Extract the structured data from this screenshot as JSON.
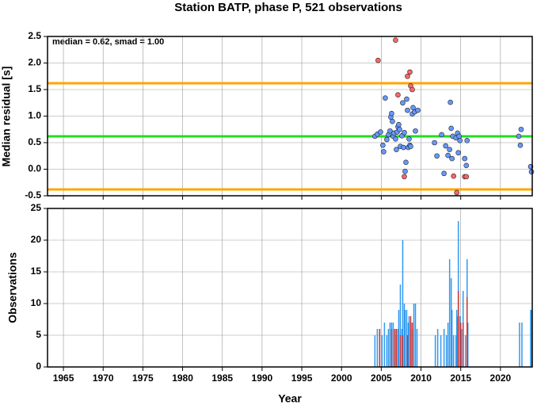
{
  "chart_data": [
    {
      "type": "scatter",
      "title": "Station BATP, phase P, 521 observations",
      "ylabel": "Median residual [s]",
      "annotation": "median = 0.62, smad = 1.00",
      "xlim": [
        1963,
        2024
      ],
      "xticks": [
        1965,
        1970,
        1975,
        1980,
        1985,
        1990,
        1995,
        2000,
        2005,
        2010,
        2015,
        2020
      ],
      "ylim": [
        -0.5,
        2.5
      ],
      "yticks": [
        -0.5,
        {
          "value": 0,
          "label": "0.0"
        },
        0.5,
        {
          "value": 1,
          "label": "1.0"
        },
        1.5,
        {
          "value": 2,
          "label": "2.0"
        },
        2.5
      ],
      "grid": true,
      "hlines": [
        {
          "value": 1.62,
          "color": "#ffa500"
        },
        {
          "value": 0.62,
          "color": "#22dd22"
        },
        {
          "value": -0.38,
          "color": "#ffa500"
        }
      ],
      "series": [
        {
          "color": "#6699ff",
          "x": [
            2004.2,
            2004.5,
            2004.9,
            2005.2,
            2005.3,
            2005.5,
            2005.7,
            2005.9,
            2006.1,
            2006.2,
            2006.3,
            2006.4,
            2006.5,
            2006.6,
            2006.8,
            2006.9,
            2007.0,
            2007.1,
            2007.2,
            2007.3,
            2007.4,
            2007.6,
            2007.7,
            2007.8,
            2007.9,
            2008.0,
            2008.1,
            2008.2,
            2008.3,
            2008.4,
            2008.5,
            2008.6,
            2008.7,
            2008.9,
            2009.0,
            2009.2,
            2009.3,
            2009.6,
            2011.7,
            2012.0,
            2012.6,
            2012.9,
            2013.1,
            2013.4,
            2013.6,
            2013.7,
            2013.8,
            2013.9,
            2014.0,
            2014.4,
            2014.6,
            2014.7,
            2014.8,
            2014.9,
            2015.5,
            2015.7,
            2015.8,
            2022.3,
            2022.6,
            2022.5,
            2023.8,
            2023.9
          ],
          "values": [
            0.62,
            0.66,
            0.7,
            0.45,
            0.33,
            1.34,
            0.56,
            0.65,
            0.72,
            0.98,
            1.05,
            0.9,
            0.62,
            0.68,
            0.57,
            0.37,
            0.7,
            0.8,
            0.84,
            0.75,
            0.43,
            0.63,
            1.25,
            0.41,
            0.69,
            -0.04,
            0.13,
            1.32,
            1.11,
            0.41,
            0.57,
            0.45,
            0.43,
            1.04,
            1.16,
            1.08,
            0.72,
            1.11,
            0.5,
            0.25,
            0.65,
            -0.08,
            0.44,
            0.26,
            0.37,
            1.26,
            0.77,
            0.2,
            0.62,
            0.59,
            0.68,
            0.31,
            0.62,
            0.54,
            0.2,
            0.07,
            0.54,
            0.62,
            0.75,
            0.45,
            0.05,
            -0.05
          ]
        },
        {
          "color": "#ff6666",
          "x": [
            2004.6,
            2006.8,
            2007.1,
            2007.9,
            2008.3,
            2008.6,
            2008.7,
            2008.9,
            2014.1,
            2014.5,
            2015.5,
            2015.7
          ],
          "values": [
            2.05,
            2.43,
            1.4,
            -0.14,
            1.75,
            1.83,
            1.57,
            1.5,
            -0.13,
            -0.44,
            -0.14,
            -0.14
          ]
        }
      ]
    },
    {
      "type": "bar",
      "ylabel": "Observations",
      "xlabel": "Year",
      "xlim": [
        1963,
        2024
      ],
      "xticks": [
        1965,
        1970,
        1975,
        1980,
        1985,
        1990,
        1995,
        2000,
        2005,
        2010,
        2015,
        2020
      ],
      "ylim": [
        0,
        25
      ],
      "yticks": [
        0,
        5,
        10,
        15,
        20,
        25
      ],
      "grid": true,
      "series": [
        {
          "color": "#3399ee",
          "x": [
            2004.2,
            2004.5,
            2004.8,
            2005.1,
            2005.4,
            2005.7,
            2005.9,
            2006.1,
            2006.3,
            2006.5,
            2006.7,
            2006.9,
            2007.1,
            2007.2,
            2007.4,
            2007.6,
            2007.7,
            2007.9,
            2008.0,
            2008.2,
            2008.4,
            2008.5,
            2008.7,
            2008.9,
            2009.1,
            2009.3,
            2009.5,
            2011.8,
            2012.1,
            2012.5,
            2012.9,
            2013.2,
            2013.4,
            2013.6,
            2013.8,
            2013.9,
            2014.1,
            2014.4,
            2014.5,
            2014.6,
            2014.7,
            2014.9,
            2015.1,
            2015.3,
            2015.6,
            2015.8,
            2015.9,
            2022.4,
            2022.7,
            2023.8,
            2023.9
          ],
          "values": [
            5,
            6,
            6,
            5,
            7,
            5,
            6,
            7,
            7,
            7,
            6,
            5,
            6,
            9,
            13,
            6,
            20,
            10,
            9,
            9,
            7,
            8,
            7,
            6,
            10,
            10,
            6,
            5,
            6,
            5,
            6,
            5,
            7,
            17,
            14,
            9,
            5,
            5,
            9,
            8,
            23,
            8,
            6,
            12,
            5,
            17,
            7,
            7,
            7,
            9,
            9
          ]
        },
        {
          "color": "#cc3333",
          "x": [
            2004.8,
            2006.3,
            2006.7,
            2006.9,
            2007.4,
            2007.7,
            2008.3,
            2008.7,
            2008.9,
            2014.7,
            2015.0,
            2015.3,
            2015.8
          ],
          "values": [
            6,
            6,
            6,
            6,
            5,
            5,
            5,
            8,
            7,
            12,
            7,
            7,
            11
          ]
        }
      ]
    }
  ]
}
